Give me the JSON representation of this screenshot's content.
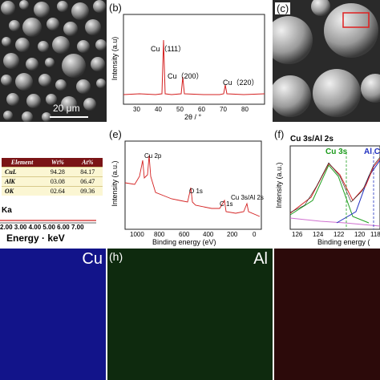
{
  "panels": {
    "a": {
      "scale_bar": "20 μm"
    },
    "b": {
      "label": "(b)",
      "ylabel": "Intensity (a.u)",
      "xlabel": "2θ / °",
      "xticks": [
        "30",
        "40",
        "50",
        "60",
        "70",
        "80"
      ],
      "peaks": [
        "Cu（111）",
        "Cu（200）",
        "Cu（220）"
      ]
    },
    "c": {
      "label": "(c)"
    },
    "e": {
      "label": "(e)",
      "ylabel": "Intensity (a.u.)",
      "xlabel": "Binding energy (eV)",
      "xticks": [
        "1000",
        "800",
        "600",
        "400",
        "200",
        "0"
      ],
      "peaks": [
        "Cu 2p",
        "O 1s",
        "C 1s",
        "Cu 3s/Al 2s"
      ]
    },
    "f": {
      "label": "(f)",
      "title": "Cu 3s/Al 2s",
      "ylabel": "Intensity (a.u.)",
      "xlabel": "Binding energy (",
      "xticks": [
        "126",
        "124",
        "122",
        "120",
        "118"
      ],
      "peak1": "Cu 3s",
      "peak2": "Al C"
    },
    "d": {
      "table_headers": [
        "Element",
        "Wt%",
        "At%"
      ],
      "table_rows": [
        [
          "CuL",
          "94.28",
          "84.17"
        ],
        [
          "AlK",
          "03.08",
          "06.47"
        ],
        [
          "OK",
          "02.64",
          "09.36"
        ]
      ],
      "spectrum_label": "Ka",
      "xlabel": "Energy · keV",
      "xticks": "2.00 3.00 4.00 5.00 6.00 7.00"
    },
    "maps": {
      "cu": "Cu",
      "h_label": "(h)",
      "al": "Al"
    }
  }
}
